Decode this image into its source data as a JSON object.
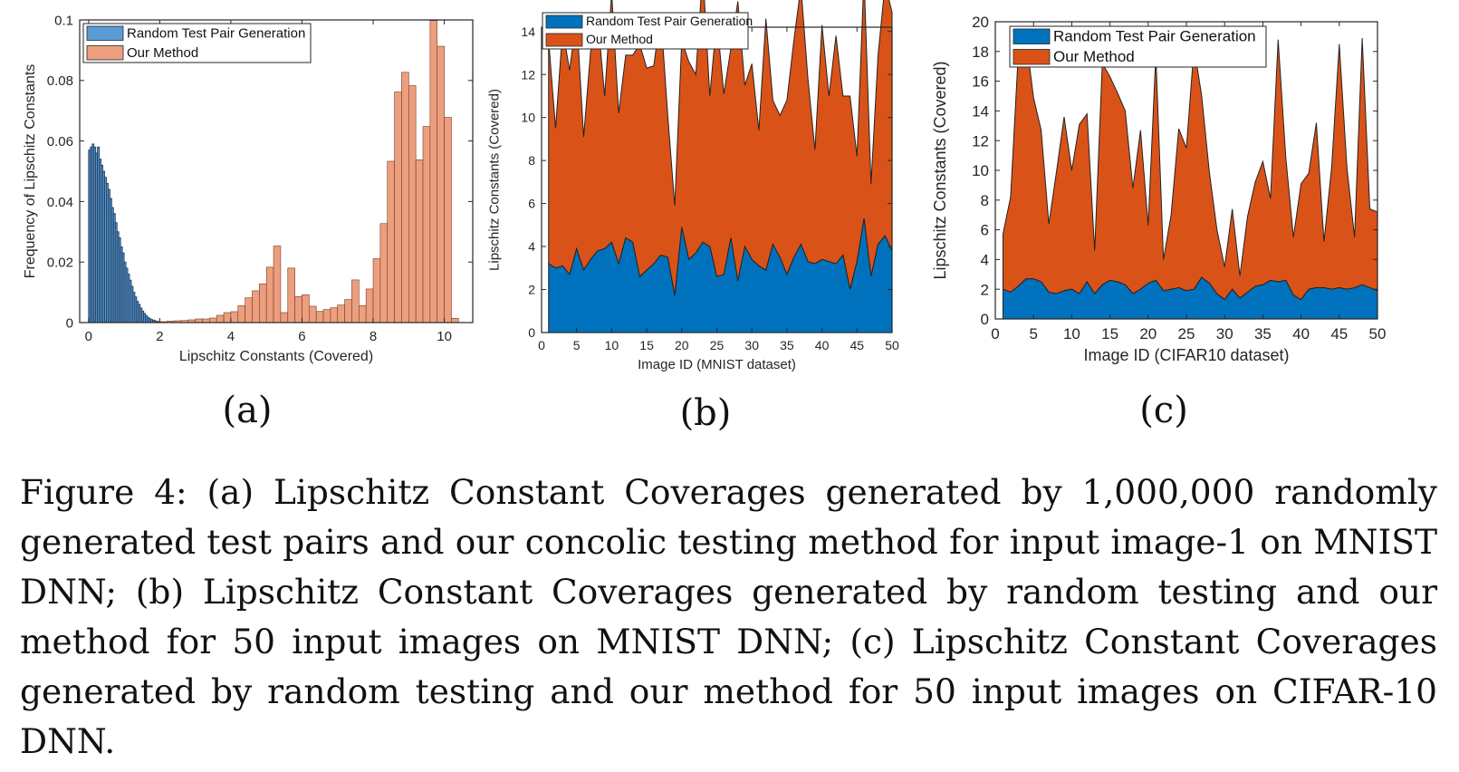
{
  "figure": {
    "caption": "Figure 4: (a) Lipschitz Constant Coverages generated by 1,000,000 randomly generated test pairs and our concolic testing method for input image-1 on MNIST DNN; (b) Lipschitz Constant Coverages generated by random testing and our method for 50 input images on MNIST DNN; (c) Lipschitz Constant Coverages generated by random testing and our method for 50 input images on CIFAR-10 DNN.",
    "sublabels": [
      "(a)",
      "(b)",
      "(c)"
    ]
  },
  "colors": {
    "random_hist": "#5a9bd5",
    "ours_hist": "#ec9f7f",
    "random_area": "#0072bd",
    "ours_area": "#d95319"
  },
  "chart_data": [
    {
      "type": "bar",
      "xlabel": "Lipschitz Constants (Covered)",
      "ylabel": "Frequency of Lipschitz Constants",
      "xlim": [
        -0.25,
        10.8
      ],
      "ylim": [
        0,
        0.1
      ],
      "xticks": [
        0,
        2,
        4,
        6,
        8,
        10
      ],
      "yticks": [
        0,
        0.02,
        0.04,
        0.06,
        0.08,
        0.1
      ],
      "ytick_labels": [
        "0",
        "0.02",
        "0.04",
        "0.06",
        "0.08",
        "0.1"
      ],
      "legend": [
        "Random Test Pair Generation",
        "Our Method"
      ],
      "legend_location": "top-left",
      "series": [
        {
          "name": "Random Test Pair Generation",
          "bin_width": 0.05,
          "bin_start": 0.0,
          "values": [
            0.057,
            0.058,
            0.059,
            0.058,
            0.056,
            0.058,
            0.054,
            0.052,
            0.05,
            0.048,
            0.046,
            0.044,
            0.041,
            0.038,
            0.036,
            0.033,
            0.03,
            0.028,
            0.025,
            0.023,
            0.02,
            0.018,
            0.016,
            0.014,
            0.012,
            0.01,
            0.0085,
            0.007,
            0.006,
            0.0048,
            0.0038,
            0.003,
            0.0023,
            0.0017,
            0.0013,
            0.001,
            0.0008,
            0.0006,
            0.0004,
            0.0003,
            0.0002,
            0.0002,
            0.0001,
            0.0001,
            0.0001
          ]
        },
        {
          "name": "Our Method",
          "bin_width": 0.2,
          "bin_start": 1.8,
          "values": [
            0.0002,
            0.0003,
            0.0005,
            0.0006,
            0.0007,
            0.0009,
            0.0012,
            0.0012,
            0.0015,
            0.0024,
            0.0033,
            0.0036,
            0.0056,
            0.0082,
            0.0105,
            0.0128,
            0.0183,
            0.0253,
            0.0033,
            0.018,
            0.0086,
            0.0092,
            0.0054,
            0.0037,
            0.0043,
            0.0049,
            0.0058,
            0.0076,
            0.0141,
            0.0056,
            0.0111,
            0.0211,
            0.0327,
            0.0533,
            0.0762,
            0.0827,
            0.0783,
            0.0538,
            0.0648,
            0.0998,
            0.0913,
            0.0678,
            0.0014
          ]
        }
      ]
    },
    {
      "type": "area",
      "xlabel": "Image ID (MNIST dataset)",
      "ylabel": "Lipschitz Constants (Covered)",
      "xlim": [
        0,
        50
      ],
      "ylim": [
        0,
        14.2
      ],
      "xticks": [
        0,
        5,
        10,
        15,
        20,
        25,
        30,
        35,
        40,
        45,
        50
      ],
      "yticks": [
        0,
        2,
        4,
        6,
        8,
        10,
        12,
        14
      ],
      "legend": [
        "Random Test Pair Generation",
        "Our Method"
      ],
      "legend_location": "top-left",
      "x": [
        1,
        2,
        3,
        4,
        5,
        6,
        7,
        8,
        9,
        10,
        11,
        12,
        13,
        14,
        15,
        16,
        17,
        18,
        19,
        20,
        21,
        22,
        23,
        24,
        25,
        26,
        27,
        28,
        29,
        30,
        31,
        32,
        33,
        34,
        35,
        36,
        37,
        38,
        39,
        40,
        41,
        42,
        43,
        44,
        45,
        46,
        47,
        48,
        49,
        50
      ],
      "series": [
        {
          "name": "Random Test Pair Generation",
          "values": [
            3.2,
            3.0,
            3.1,
            2.7,
            3.9,
            2.9,
            3.4,
            3.8,
            3.9,
            4.2,
            3.2,
            4.4,
            4.2,
            2.6,
            2.9,
            3.2,
            3.6,
            3.5,
            1.7,
            4.9,
            3.4,
            3.7,
            4.2,
            4.0,
            2.6,
            2.7,
            4.4,
            2.4,
            4.0,
            3.4,
            3.1,
            2.9,
            4.1,
            3.5,
            2.7,
            3.5,
            4.1,
            3.3,
            3.2,
            3.4,
            3.3,
            3.2,
            3.6,
            2.0,
            3.3,
            5.3,
            2.6,
            4.1,
            4.5,
            3.8
          ]
        },
        {
          "name": "Our Method",
          "values": [
            10.4,
            6.5,
            11.0,
            9.5,
            10.8,
            6.2,
            9.7,
            10.9,
            7.1,
            11.6,
            7.0,
            8.5,
            8.7,
            10.8,
            9.4,
            9.2,
            11.2,
            6.6,
            4.2,
            8.7,
            9.2,
            8.3,
            12.6,
            7.0,
            12.0,
            8.4,
            8.8,
            13.0,
            7.5,
            9.1,
            6.3,
            11.7,
            6.7,
            6.6,
            8.1,
            10.1,
            12.0,
            8.5,
            5.3,
            10.9,
            7.7,
            10.6,
            7.4,
            9.0,
            4.9,
            11.3,
            4.3,
            8.8,
            11.7,
            11.1
          ]
        }
      ]
    },
    {
      "type": "area",
      "xlabel": "Image ID (CIFAR10 dataset)",
      "ylabel": "Lipschitz Constants (Covered)",
      "xlim": [
        0,
        50
      ],
      "ylim": [
        0,
        20
      ],
      "xticks": [
        0,
        5,
        10,
        15,
        20,
        25,
        30,
        35,
        40,
        45,
        50
      ],
      "yticks": [
        0,
        2,
        4,
        6,
        8,
        10,
        12,
        14,
        16,
        18,
        20
      ],
      "legend": [
        "Random Test Pair Generation",
        "Our Method"
      ],
      "legend_location": "top-center",
      "x": [
        1,
        2,
        3,
        4,
        5,
        6,
        7,
        8,
        9,
        10,
        11,
        12,
        13,
        14,
        15,
        16,
        17,
        18,
        19,
        20,
        21,
        22,
        23,
        24,
        25,
        26,
        27,
        28,
        29,
        30,
        31,
        32,
        33,
        34,
        35,
        36,
        37,
        38,
        39,
        40,
        41,
        42,
        43,
        44,
        45,
        46,
        47,
        48,
        49,
        50
      ],
      "series": [
        {
          "name": "Random Test Pair Generation",
          "values": [
            2.0,
            1.8,
            2.2,
            2.7,
            2.7,
            2.5,
            1.8,
            1.7,
            1.9,
            2.0,
            1.7,
            2.5,
            1.7,
            2.3,
            2.6,
            2.5,
            2.3,
            1.7,
            2.0,
            2.4,
            2.6,
            1.9,
            2.0,
            2.1,
            1.9,
            2.0,
            2.8,
            2.4,
            1.7,
            1.3,
            2.0,
            1.4,
            1.8,
            2.2,
            2.3,
            2.6,
            2.5,
            2.6,
            1.6,
            1.3,
            2.0,
            2.1,
            2.1,
            2.0,
            2.1,
            2.0,
            2.1,
            2.3,
            2.1,
            1.9
          ]
        },
        {
          "name": "Our Method",
          "values": [
            3.7,
            6.4,
            15.6,
            16.3,
            12.2,
            10.2,
            4.6,
            8.2,
            11.7,
            8.0,
            11.4,
            11.3,
            2.9,
            14.9,
            13.7,
            12.7,
            11.7,
            7.1,
            10.7,
            3.9,
            15.2,
            2.1,
            5.0,
            10.7,
            9.6,
            16.3,
            12.2,
            7.5,
            4.3,
            2.2,
            5.4,
            1.5,
            5.1,
            7.0,
            8.3,
            5.5,
            16.3,
            8.3,
            3.9,
            7.8,
            7.8,
            11.1,
            3.1,
            8.2,
            16.4,
            8.2,
            3.4,
            16.6,
            5.3,
            5.3
          ]
        }
      ]
    }
  ]
}
